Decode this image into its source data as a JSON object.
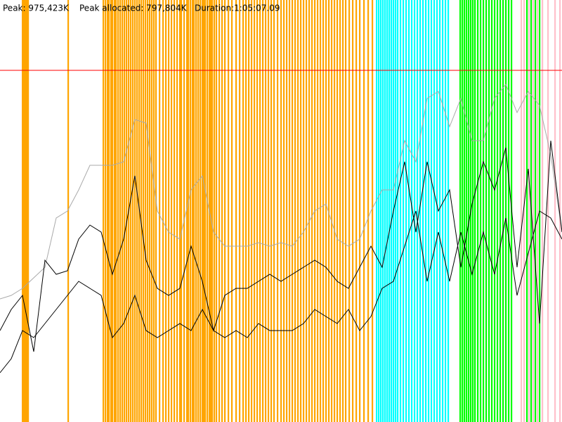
{
  "header": {
    "peak": "Peak: 975,423K",
    "peak_allocated": "Peak allocated: 797,804K",
    "duration": "Duration:1:05:07.09"
  },
  "chart_data": {
    "type": "line",
    "ylim": [
      0,
      1170480
    ],
    "peak_line": 975423,
    "peak_color": "#ff0000",
    "series": [
      {
        "color": "#aaaaaa",
        "values": [
          341390,
          351144,
          370652,
          399914,
          429176,
          565732,
          585240,
          643764,
          712042,
          712042,
          712042,
          721796,
          838844,
          829090,
          585240,
          526716,
          507208,
          643764,
          682780,
          526716,
          487700,
          487700,
          487700,
          497454,
          487700,
          497454,
          487700,
          526716,
          585240,
          604748,
          507208,
          487700,
          507208,
          585240,
          643764,
          643764,
          780320,
          721796,
          897368,
          916876,
          819336,
          897368,
          780320,
          780320,
          897368,
          936384,
          858352,
          916876,
          877860,
          741304,
          526716
        ]
      },
      {
        "color": "#000000",
        "values": [
          253604,
          312128,
          351144,
          195080,
          448684,
          409668,
          419422,
          507208,
          546224,
          526716,
          409668,
          507208,
          682780,
          448684,
          370652,
          351144,
          370652,
          487700,
          390160,
          253604,
          351144,
          370652,
          370652,
          390160,
          409668,
          390160,
          409668,
          429176,
          448684,
          429176,
          390160,
          370652,
          429176,
          487700,
          429176,
          585240,
          721796,
          526716,
          721796,
          585240,
          643764,
          429176,
          604748,
          721796,
          643764,
          760812,
          429176,
          702288,
          273112,
          780320,
          526716
        ]
      },
      {
        "color": "#000000",
        "values": [
          136556,
          175572,
          253604,
          234096,
          273112,
          312128,
          351144,
          390160,
          370652,
          351144,
          234096,
          273112,
          351144,
          253604,
          234096,
          253604,
          273112,
          253604,
          312128,
          253604,
          234096,
          253604,
          234096,
          273112,
          253604,
          253604,
          253604,
          273112,
          312128,
          292620,
          273112,
          312128,
          253604,
          292620,
          370652,
          390160,
          487700,
          585240,
          390160,
          526716,
          390160,
          526716,
          409668,
          526716,
          409668,
          565732,
          351144,
          468192,
          585240,
          565732,
          507208
        ]
      }
    ]
  }
}
